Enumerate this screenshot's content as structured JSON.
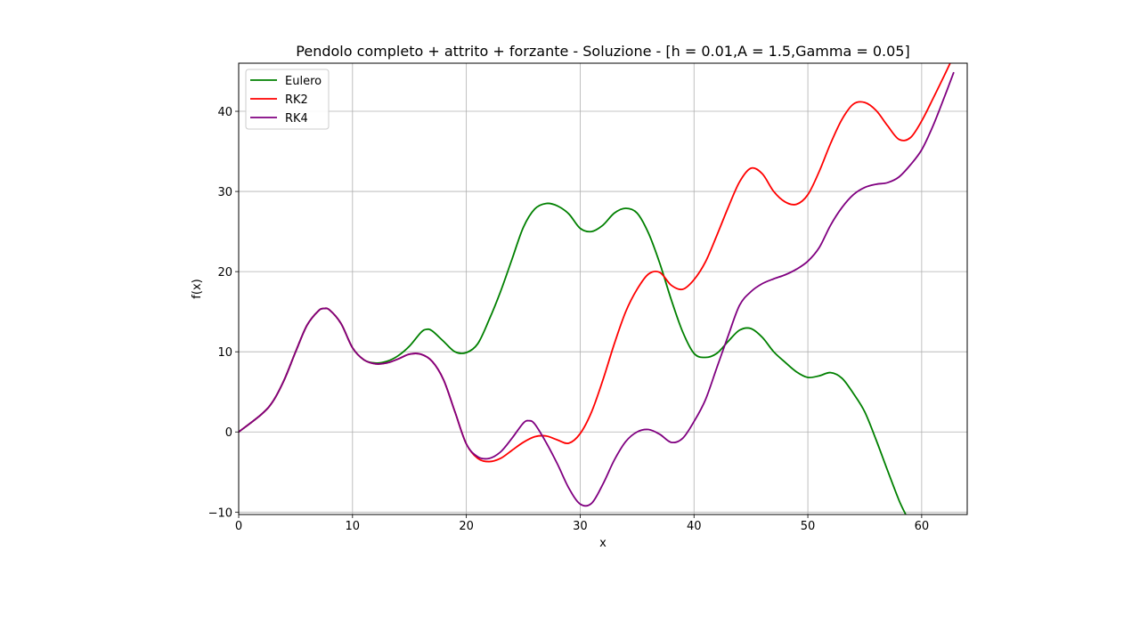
{
  "chart_data": {
    "type": "line",
    "title": "Pendolo completo + attrito + forzante - Soluzione - [h = 0.01,A = 1.5,Gamma = 0.05]",
    "xlabel": "x",
    "ylabel": "f(x)",
    "xlim": [
      0,
      64
    ],
    "ylim": [
      -10.3,
      46
    ],
    "x_ticks": [
      0,
      10,
      20,
      30,
      40,
      50,
      60
    ],
    "y_ticks": [
      -10,
      0,
      10,
      20,
      30,
      40
    ],
    "grid": true,
    "legend_position": "upper-left",
    "series": [
      {
        "name": "Eulero",
        "color": "#008000",
        "points": [
          [
            0,
            0
          ],
          [
            2,
            2.2
          ],
          [
            3,
            3.8
          ],
          [
            4,
            6.5
          ],
          [
            5,
            10
          ],
          [
            6,
            13.3
          ],
          [
            7,
            15.1
          ],
          [
            7.5,
            15.4
          ],
          [
            8,
            15.2
          ],
          [
            9,
            13.5
          ],
          [
            10,
            10.5
          ],
          [
            11,
            9
          ],
          [
            12,
            8.6
          ],
          [
            13,
            8.8
          ],
          [
            14,
            9.5
          ],
          [
            15,
            10.7
          ],
          [
            16,
            12.4
          ],
          [
            16.5,
            12.8
          ],
          [
            17,
            12.6
          ],
          [
            18,
            11.3
          ],
          [
            19,
            10
          ],
          [
            20,
            9.9
          ],
          [
            21,
            11
          ],
          [
            22,
            14
          ],
          [
            23,
            17.5
          ],
          [
            24,
            21.5
          ],
          [
            25,
            25.5
          ],
          [
            26,
            27.8
          ],
          [
            27,
            28.5
          ],
          [
            28,
            28.2
          ],
          [
            29,
            27.2
          ],
          [
            30,
            25.4
          ],
          [
            31,
            25
          ],
          [
            32,
            25.8
          ],
          [
            33,
            27.3
          ],
          [
            34,
            27.9
          ],
          [
            35,
            27.3
          ],
          [
            36,
            24.8
          ],
          [
            37,
            21
          ],
          [
            38,
            16.5
          ],
          [
            39,
            12.5
          ],
          [
            40,
            9.8
          ],
          [
            41,
            9.3
          ],
          [
            42,
            9.8
          ],
          [
            43,
            11.3
          ],
          [
            44,
            12.7
          ],
          [
            45,
            12.9
          ],
          [
            46,
            11.8
          ],
          [
            47,
            10
          ],
          [
            48,
            8.7
          ],
          [
            49,
            7.5
          ],
          [
            50,
            6.8
          ],
          [
            51,
            7
          ],
          [
            52,
            7.4
          ],
          [
            53,
            6.7
          ],
          [
            54,
            4.8
          ],
          [
            55,
            2.5
          ],
          [
            56,
            -1
          ],
          [
            57,
            -4.8
          ],
          [
            58,
            -8.5
          ],
          [
            58.6,
            -10.3
          ]
        ]
      },
      {
        "name": "RK2",
        "color": "#ff0000",
        "points": [
          [
            0,
            0
          ],
          [
            2,
            2.2
          ],
          [
            3,
            3.8
          ],
          [
            4,
            6.5
          ],
          [
            5,
            10
          ],
          [
            6,
            13.3
          ],
          [
            7,
            15.1
          ],
          [
            7.5,
            15.4
          ],
          [
            8,
            15.2
          ],
          [
            9,
            13.5
          ],
          [
            10,
            10.5
          ],
          [
            11,
            9
          ],
          [
            12,
            8.5
          ],
          [
            13,
            8.6
          ],
          [
            14,
            9.1
          ],
          [
            15,
            9.7
          ],
          [
            16,
            9.7
          ],
          [
            17,
            8.8
          ],
          [
            18,
            6.5
          ],
          [
            19,
            2.5
          ],
          [
            20,
            -1.5
          ],
          [
            21,
            -3.3
          ],
          [
            22,
            -3.7
          ],
          [
            23,
            -3.3
          ],
          [
            24,
            -2.3
          ],
          [
            25,
            -1.3
          ],
          [
            26,
            -0.6
          ],
          [
            27,
            -0.5
          ],
          [
            28,
            -1
          ],
          [
            29,
            -1.4
          ],
          [
            30,
            -0.2
          ],
          [
            31,
            2.5
          ],
          [
            32,
            6.5
          ],
          [
            33,
            11
          ],
          [
            34,
            15
          ],
          [
            35,
            17.8
          ],
          [
            36,
            19.7
          ],
          [
            37,
            19.9
          ],
          [
            38,
            18.3
          ],
          [
            39,
            17.8
          ],
          [
            40,
            19
          ],
          [
            41,
            21.2
          ],
          [
            42,
            24.5
          ],
          [
            43,
            28
          ],
          [
            44,
            31.2
          ],
          [
            45,
            32.9
          ],
          [
            46,
            32.2
          ],
          [
            47,
            30
          ],
          [
            48,
            28.7
          ],
          [
            49,
            28.4
          ],
          [
            50,
            29.6
          ],
          [
            51,
            32.5
          ],
          [
            52,
            36
          ],
          [
            53,
            39
          ],
          [
            54,
            40.9
          ],
          [
            55,
            41.1
          ],
          [
            56,
            40.1
          ],
          [
            57,
            38.2
          ],
          [
            58,
            36.5
          ],
          [
            59,
            36.7
          ],
          [
            60,
            38.8
          ],
          [
            61,
            41.6
          ],
          [
            62,
            44.5
          ],
          [
            62.5,
            46
          ]
        ]
      },
      {
        "name": "RK4",
        "color": "#800080",
        "points": [
          [
            0,
            0
          ],
          [
            2,
            2.2
          ],
          [
            3,
            3.8
          ],
          [
            4,
            6.5
          ],
          [
            5,
            10
          ],
          [
            6,
            13.3
          ],
          [
            7,
            15.1
          ],
          [
            7.5,
            15.4
          ],
          [
            8,
            15.2
          ],
          [
            9,
            13.5
          ],
          [
            10,
            10.5
          ],
          [
            11,
            9
          ],
          [
            12,
            8.5
          ],
          [
            13,
            8.6
          ],
          [
            14,
            9.1
          ],
          [
            15,
            9.7
          ],
          [
            16,
            9.7
          ],
          [
            17,
            8.8
          ],
          [
            18,
            6.5
          ],
          [
            19,
            2.5
          ],
          [
            20,
            -1.5
          ],
          [
            21,
            -3.1
          ],
          [
            22,
            -3.3
          ],
          [
            23,
            -2.5
          ],
          [
            24,
            -0.8
          ],
          [
            25,
            1.1
          ],
          [
            25.5,
            1.4
          ],
          [
            26,
            1
          ],
          [
            27,
            -1.3
          ],
          [
            28,
            -4
          ],
          [
            29,
            -7
          ],
          [
            30,
            -9
          ],
          [
            31,
            -8.9
          ],
          [
            32,
            -6.5
          ],
          [
            33,
            -3.5
          ],
          [
            34,
            -1.2
          ],
          [
            35,
            0
          ],
          [
            36,
            0.3
          ],
          [
            37,
            -0.3
          ],
          [
            38,
            -1.3
          ],
          [
            39,
            -0.8
          ],
          [
            40,
            1.3
          ],
          [
            41,
            4
          ],
          [
            42,
            8
          ],
          [
            43,
            12
          ],
          [
            44,
            15.8
          ],
          [
            45,
            17.5
          ],
          [
            46,
            18.5
          ],
          [
            47,
            19.1
          ],
          [
            48,
            19.6
          ],
          [
            49,
            20.3
          ],
          [
            50,
            21.3
          ],
          [
            51,
            23
          ],
          [
            52,
            25.8
          ],
          [
            53,
            28
          ],
          [
            54,
            29.6
          ],
          [
            55,
            30.5
          ],
          [
            56,
            30.9
          ],
          [
            57,
            31.1
          ],
          [
            58,
            31.8
          ],
          [
            59,
            33.3
          ],
          [
            60,
            35.2
          ],
          [
            61,
            38.2
          ],
          [
            62,
            41.8
          ],
          [
            62.8,
            44.8
          ]
        ]
      }
    ]
  }
}
